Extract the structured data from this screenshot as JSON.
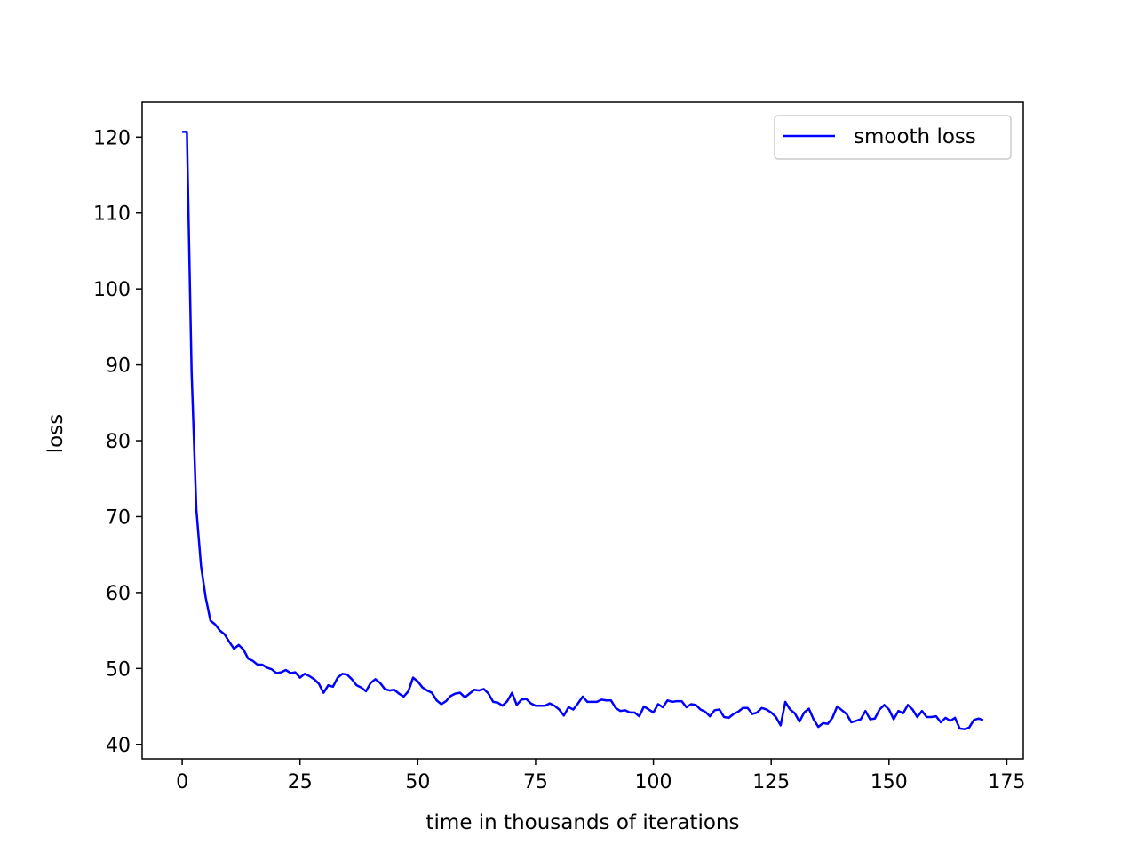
{
  "chart_data": {
    "type": "line",
    "title": "",
    "xlabel": "time in thousands of iterations",
    "ylabel": "loss",
    "xlim": [
      -8.5,
      178.5
    ],
    "ylim": [
      38.1,
      124.6
    ],
    "xticks": [
      0,
      25,
      50,
      75,
      100,
      125,
      150,
      175
    ],
    "yticks": [
      40,
      50,
      60,
      70,
      80,
      90,
      100,
      110,
      120
    ],
    "grid": false,
    "legend_position": "top-right",
    "series": [
      {
        "name": "smooth loss",
        "color": "#0000ff",
        "x": [
          0,
          1,
          2,
          3,
          4,
          5,
          6,
          7,
          8,
          9,
          10,
          11,
          12,
          13,
          14,
          15,
          16,
          17,
          18,
          19,
          20,
          21,
          22,
          23,
          24,
          25,
          26,
          27,
          28,
          29,
          30,
          31,
          32,
          33,
          34,
          35,
          36,
          37,
          38,
          39,
          40,
          41,
          42,
          43,
          44,
          45,
          46,
          47,
          48,
          49,
          50,
          51,
          52,
          53,
          54,
          55,
          56,
          57,
          58,
          59,
          60,
          61,
          62,
          63,
          64,
          65,
          66,
          67,
          68,
          69,
          70,
          71,
          72,
          73,
          74,
          75,
          76,
          77,
          78,
          79,
          80,
          81,
          82,
          83,
          84,
          85,
          86,
          87,
          88,
          89,
          90,
          91,
          92,
          93,
          94,
          95,
          96,
          97,
          98,
          99,
          100,
          101,
          102,
          103,
          104,
          105,
          106,
          107,
          108,
          109,
          110,
          111,
          112,
          113,
          114,
          115,
          116,
          117,
          118,
          119,
          120,
          121,
          122,
          123,
          124,
          125,
          126,
          127,
          128,
          129,
          130,
          131,
          132,
          133,
          134,
          135,
          136,
          137,
          138,
          139,
          140,
          141,
          142,
          143,
          144,
          145,
          146,
          147,
          148,
          149,
          150,
          151,
          152,
          153,
          154,
          155,
          156,
          157,
          158,
          159,
          160,
          161,
          162,
          163,
          164,
          165,
          166,
          167,
          168,
          169,
          170
        ],
        "y": [
          120.7,
          120.7,
          89.0,
          71.0,
          63.5,
          59.3,
          56.3,
          55.8,
          55.0,
          54.5,
          53.5,
          52.6,
          53.1,
          52.5,
          51.3,
          51.0,
          50.5,
          50.5,
          50.1,
          49.9,
          49.4,
          49.5,
          49.8,
          49.4,
          49.5,
          48.8,
          49.3,
          49.0,
          48.6,
          48.0,
          46.8,
          47.8,
          47.6,
          48.8,
          49.3,
          49.2,
          48.6,
          47.8,
          47.5,
          47.0,
          48.1,
          48.6,
          48.1,
          47.3,
          47.1,
          47.2,
          46.7,
          46.3,
          47.0,
          48.8,
          48.3,
          47.5,
          47.1,
          46.8,
          45.8,
          45.3,
          45.7,
          46.4,
          46.7,
          46.8,
          46.2,
          46.7,
          47.2,
          47.1,
          47.3,
          46.7,
          45.6,
          45.5,
          45.1,
          45.7,
          46.8,
          45.2,
          45.9,
          46.0,
          45.4,
          45.1,
          45.1,
          45.1,
          45.4,
          45.1,
          44.6,
          43.8,
          44.9,
          44.6,
          45.4,
          46.3,
          45.6,
          45.6,
          45.6,
          45.9,
          45.8,
          45.8,
          44.8,
          44.4,
          44.5,
          44.2,
          44.2,
          43.7,
          45.0,
          44.6,
          44.2,
          45.3,
          44.9,
          45.8,
          45.6,
          45.7,
          45.7,
          44.9,
          45.3,
          45.2,
          44.6,
          44.3,
          43.7,
          44.5,
          44.6,
          43.6,
          43.5,
          44.0,
          44.3,
          44.8,
          44.8,
          44.0,
          44.2,
          44.8,
          44.6,
          44.2,
          43.6,
          42.5,
          45.6,
          44.6,
          44.1,
          43.0,
          44.2,
          44.7,
          43.3,
          42.3,
          42.8,
          42.7,
          43.5,
          45.0,
          44.5,
          44.0,
          42.9,
          43.1,
          43.3,
          44.4,
          43.3,
          43.4,
          44.6,
          45.2,
          44.6,
          43.3,
          44.4,
          44.1,
          45.2,
          44.6,
          43.6,
          44.4,
          43.6,
          43.6,
          43.7,
          42.9,
          43.5,
          43.1,
          43.5,
          42.1,
          42.0,
          42.2,
          43.2,
          43.4,
          43.2
        ]
      }
    ]
  }
}
